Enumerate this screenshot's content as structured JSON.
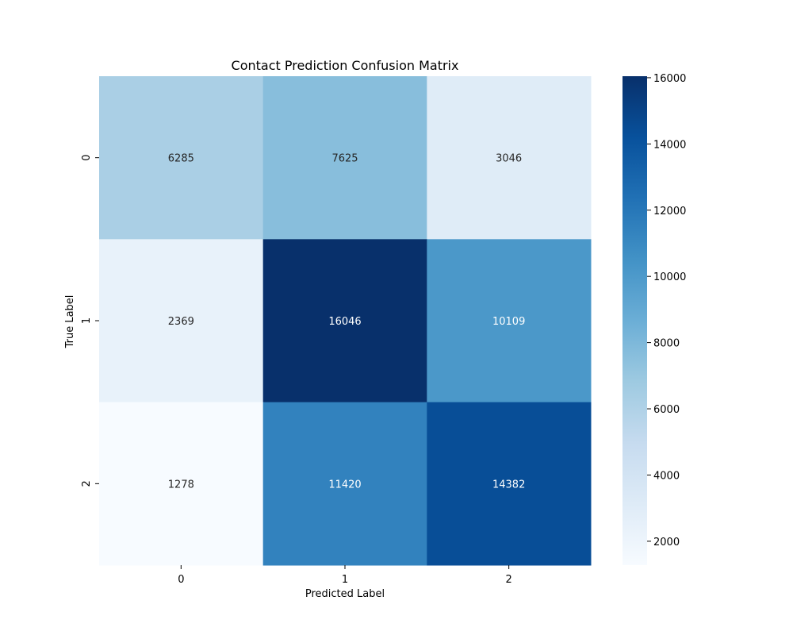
{
  "chart_data": {
    "type": "heatmap",
    "title": "Contact Prediction Confusion Matrix",
    "xlabel": "Predicted Label",
    "ylabel": "True Label",
    "x_categories": [
      "0",
      "1",
      "2"
    ],
    "y_categories": [
      "0",
      "1",
      "2"
    ],
    "values": [
      [
        6285,
        7625,
        3046
      ],
      [
        2369,
        16046,
        10109
      ],
      [
        1278,
        11420,
        14382
      ]
    ],
    "colorbar": {
      "colormap": "Blues",
      "range": [
        1278,
        16046
      ],
      "ticks": [
        2000,
        4000,
        6000,
        8000,
        10000,
        12000,
        14000,
        16000
      ]
    },
    "grid": false
  }
}
